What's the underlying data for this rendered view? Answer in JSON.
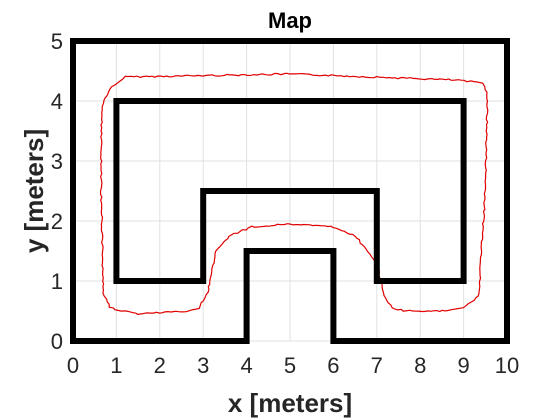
{
  "chart_data": {
    "type": "line",
    "title": "Map",
    "xlabel": "x [meters]",
    "ylabel": "y [meters]",
    "xlim": [
      0,
      10
    ],
    "ylim": [
      0,
      5
    ],
    "x_ticks": [
      "0",
      "1",
      "2",
      "3",
      "4",
      "5",
      "6",
      "7",
      "8",
      "9",
      "10"
    ],
    "y_ticks": [
      "0",
      "1",
      "2",
      "3",
      "4",
      "5"
    ],
    "grid": true,
    "colors": {
      "walls": "#000000",
      "path": "#e00000",
      "grid": "#e0e0e0"
    },
    "series": [
      {
        "role": "outer-wall",
        "x": [
          0,
          10,
          10,
          6,
          6,
          4,
          4,
          0,
          0
        ],
        "y": [
          5,
          5,
          0,
          0,
          1.5,
          1.5,
          0,
          0,
          5
        ]
      },
      {
        "role": "inner-wall",
        "x": [
          1,
          9,
          9,
          7,
          7,
          3,
          3,
          1,
          1
        ],
        "y": [
          4,
          4,
          1,
          1,
          2.5,
          2.5,
          1,
          1,
          4
        ]
      },
      {
        "role": "robot-path",
        "x": [
          0.85,
          1.2,
          5.0,
          8.8,
          9.45,
          9.55,
          9.5,
          9.35,
          9.0,
          8.5,
          7.7,
          7.35,
          7.2,
          7.0,
          6.5,
          6.0,
          5.0,
          4.1,
          3.6,
          3.3,
          3.1,
          2.9,
          2.6,
          1.5,
          0.85,
          0.7,
          0.65,
          0.65,
          0.7,
          0.85
        ],
        "y": [
          4.2,
          4.4,
          4.45,
          4.35,
          4.3,
          4.1,
          2.5,
          0.75,
          0.55,
          0.5,
          0.5,
          0.55,
          0.7,
          1.3,
          1.75,
          1.9,
          1.95,
          1.9,
          1.75,
          1.5,
          0.8,
          0.55,
          0.5,
          0.45,
          0.55,
          0.8,
          2.5,
          3.5,
          4.0,
          4.2
        ]
      }
    ]
  }
}
